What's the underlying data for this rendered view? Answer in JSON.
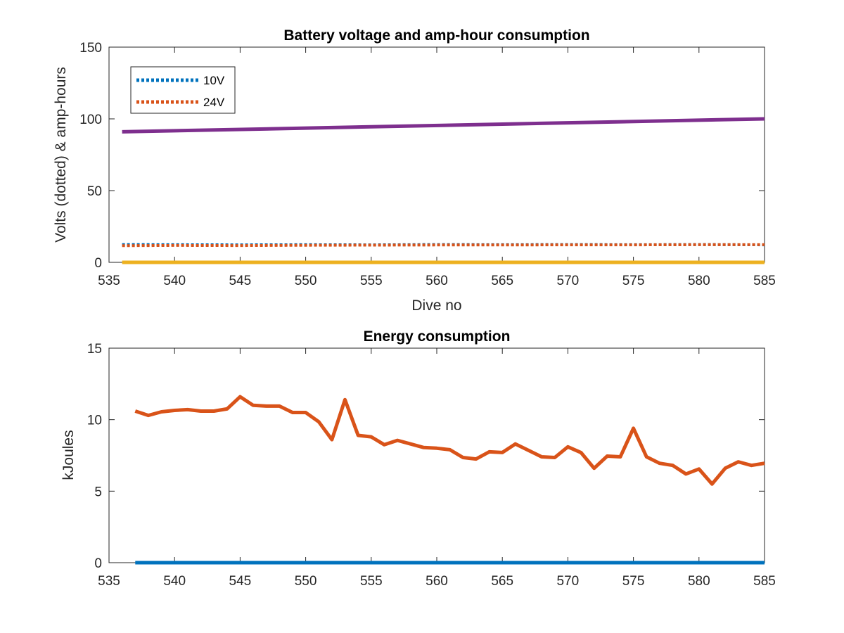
{
  "chart_data": [
    {
      "type": "line",
      "title": "Battery voltage and amp-hour consumption",
      "xlabel": "Dive no",
      "ylabel": "Volts (dotted) & amp-hours",
      "xlim": [
        535,
        585
      ],
      "ylim": [
        0,
        150
      ],
      "xticks": [
        "535",
        "540",
        "545",
        "550",
        "555",
        "560",
        "565",
        "570",
        "575",
        "580",
        "585"
      ],
      "yticks": [
        "0",
        "50",
        "100",
        "150"
      ],
      "legend": {
        "placement": "top-left",
        "entries": [
          "10V",
          "24V"
        ]
      },
      "colors": {
        "10V": "#0072BD",
        "24V": "#D95319",
        "amp_hours_24V": "#7E2F8E",
        "amp_hours_10V": "#EDB120"
      },
      "series": [
        {
          "name": "10V",
          "style": "dotted",
          "color": "#0072BD",
          "x": [
            536,
            540,
            545,
            550,
            555,
            560,
            565,
            570,
            575,
            580,
            585
          ],
          "y": [
            12.4,
            12.3,
            12.2,
            12.3,
            12.2,
            12.4,
            12.3,
            12.4,
            12.3,
            12.4,
            12.2
          ]
        },
        {
          "name": "24V",
          "style": "dotted",
          "color": "#D95319",
          "x": [
            536,
            540,
            545,
            550,
            555,
            560,
            565,
            570,
            575,
            580,
            585
          ],
          "y": [
            11.6,
            11.8,
            11.7,
            11.9,
            12.0,
            12.1,
            12.1,
            12.2,
            12.2,
            12.3,
            12.3
          ]
        },
        {
          "style": "solid",
          "color": "#7E2F8E",
          "x": [
            536,
            585
          ],
          "y": [
            91,
            100
          ]
        },
        {
          "style": "solid",
          "color": "#EDB120",
          "x": [
            536,
            585
          ],
          "y": [
            0,
            0
          ]
        }
      ]
    },
    {
      "type": "line",
      "title": "Energy consumption",
      "xlabel": "",
      "ylabel": "kJoules",
      "xlim": [
        535,
        585
      ],
      "ylim": [
        0,
        15
      ],
      "xticks": [
        "535",
        "540",
        "545",
        "550",
        "555",
        "560",
        "565",
        "570",
        "575",
        "580",
        "585"
      ],
      "yticks": [
        "0",
        "5",
        "10",
        "15"
      ],
      "series": [
        {
          "style": "solid",
          "color": "#D95319",
          "x": [
            537,
            538,
            539,
            540,
            541,
            542,
            543,
            544,
            545,
            546,
            547,
            548,
            549,
            550,
            551,
            552,
            553,
            554,
            555,
            556,
            557,
            558,
            559,
            560,
            561,
            562,
            563,
            564,
            565,
            566,
            567,
            568,
            569,
            570,
            571,
            572,
            573,
            574,
            575,
            576,
            577,
            578,
            579,
            580,
            581,
            582,
            583,
            584,
            585
          ],
          "y": [
            10.6,
            10.3,
            10.55,
            10.65,
            10.7,
            10.6,
            10.6,
            10.75,
            11.6,
            11.0,
            10.95,
            10.95,
            10.5,
            10.5,
            9.85,
            8.6,
            11.4,
            8.9,
            8.8,
            8.25,
            8.55,
            8.3,
            8.05,
            8.0,
            7.9,
            7.35,
            7.25,
            7.75,
            7.7,
            8.3,
            7.85,
            7.4,
            7.35,
            8.1,
            7.7,
            6.6,
            7.45,
            7.4,
            9.4,
            7.4,
            6.95,
            6.8,
            6.2,
            6.55,
            5.5,
            6.6,
            7.05,
            6.8,
            6.95
          ]
        },
        {
          "style": "solid",
          "color": "#0072BD",
          "x": [
            537,
            585
          ],
          "y": [
            0,
            0
          ]
        }
      ]
    }
  ]
}
